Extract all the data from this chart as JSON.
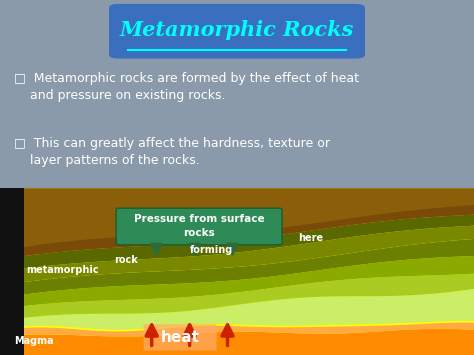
{
  "title": "Metamorphic Rocks",
  "title_bg": "#3a6fbf",
  "title_color": "#00ffff",
  "bullet1_line1": "Metamorphic rocks are formed by the effect of heat",
  "bullet1_line2": "and pressure on existing rocks.",
  "bullet2_line1": "This can greatly affect the hardness, texture or",
  "bullet2_line2": "layer patterns of the rocks.",
  "upper_bg": "#8a9aaa",
  "lower_bg": "#ffff00",
  "magma_color": "#ff8c00",
  "magma_light_color": "#ffaa44",
  "pressure_box_color": "#2e8b57",
  "pressure_box_text": "Pressure from surface\nrocks",
  "pressure_arrows_color": "#2e6b3a",
  "heat_arrows_color": "#cc2200",
  "heat_text": "heat",
  "heat_text_color": "#ffffff",
  "heat_box_color": "#ffaa66",
  "label_color": "#ffffff",
  "font_size_label": 7,
  "font_size_bullet": 9,
  "font_size_title": 15,
  "layer_colors_top_to_bottom": [
    "#8B5e0a",
    "#a06808",
    "#7a8000",
    "#6b7800",
    "#8aaa00",
    "#aacc22",
    "#ccee66",
    "#ddf088"
  ]
}
